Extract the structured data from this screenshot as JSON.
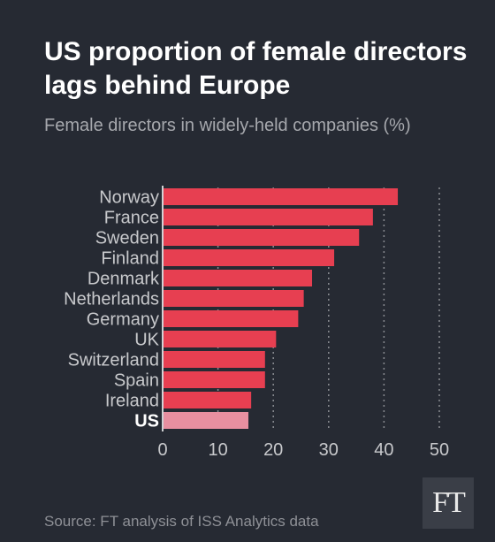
{
  "title": "US proportion of female directors lags behind Europe",
  "subtitle": "Female directors in widely-held companies (%)",
  "source": "Source: FT analysis of ISS Analytics data",
  "logo_text": "FT",
  "colors": {
    "background": "#262a33",
    "bar": "#e73f51",
    "highlight_bar": "#e88fa0",
    "text": "#ffffff",
    "axis_text": "#c8c9cc",
    "grid": "#8a8c92"
  },
  "chart_data": {
    "type": "bar",
    "orientation": "horizontal",
    "categories": [
      "Norway",
      "France",
      "Sweden",
      "Finland",
      "Denmark",
      "Netherlands",
      "Germany",
      "UK",
      "Switzerland",
      "Spain",
      "Ireland",
      "US"
    ],
    "values": [
      42.5,
      38,
      35.5,
      31,
      27,
      25.5,
      24.5,
      20.5,
      18.5,
      18.5,
      16,
      15.5
    ],
    "highlight": "US",
    "xlim": [
      0,
      50
    ],
    "xticks": [
      0,
      10,
      20,
      30,
      40,
      50
    ],
    "grid": true,
    "xlabel": "",
    "ylabel": ""
  }
}
